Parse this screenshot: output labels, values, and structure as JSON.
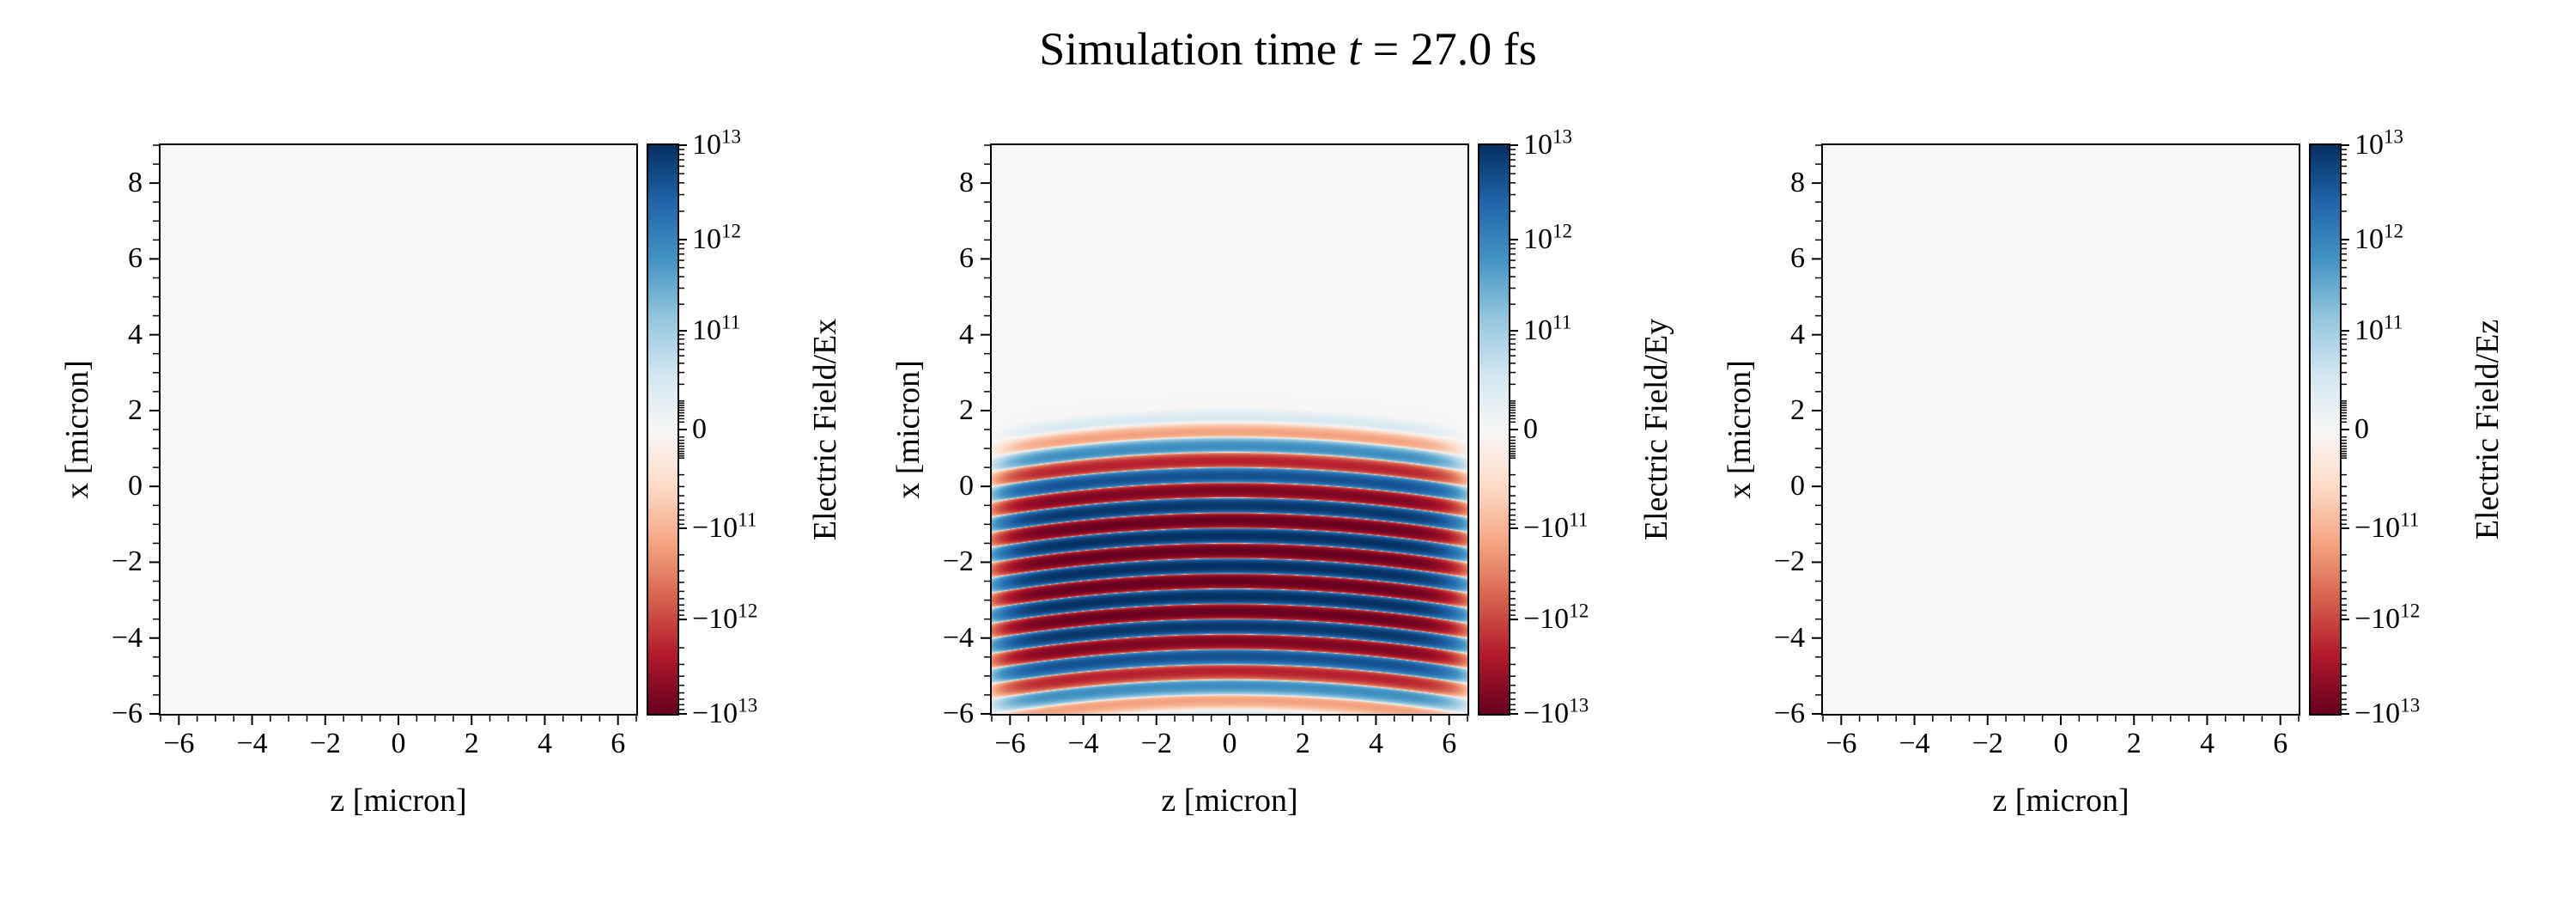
{
  "title": {
    "prefix": "Simulation time ",
    "variable": "t",
    "suffix": " = 27.0 fs"
  },
  "simulation_time_fs": 27.0,
  "colors": {
    "background": "#ffffff",
    "text": "#000000",
    "axis": "#000000",
    "colormap_name": "RdBu (red = negative, white = zero, blue = positive)",
    "colormap_stops": [
      "#67001f",
      "#b2182b",
      "#d6604d",
      "#f4a582",
      "#fddbc7",
      "#f7f7f7",
      "#d1e5f0",
      "#92c5de",
      "#4393c3",
      "#2166ac",
      "#053061"
    ]
  },
  "chart_data": [
    {
      "type": "heatmap",
      "field_component": "Ex",
      "xlabel": "z [micron]",
      "ylabel": "x [micron]",
      "xlim": [
        -6.5,
        6.5
      ],
      "ylim": [
        -6,
        9
      ],
      "xticks": [
        -6,
        -4,
        -2,
        0,
        2,
        4,
        6
      ],
      "yticks": [
        -6,
        -4,
        -2,
        0,
        2,
        4,
        6,
        8
      ],
      "grid": false,
      "colorbar_label": "Electric Field/Ex",
      "colorbar_scale": "symlog",
      "symlog_linthresh": 10000000000.0,
      "clim": [
        -10000000000000.0,
        10000000000000.0
      ],
      "colorbar_ticks": [
        "10^{13}",
        "10^{12}",
        "10^{11}",
        "0",
        "−10^{11}",
        "−10^{12}",
        "−10^{13}"
      ],
      "colorbar_tick_values": [
        10000000000000.0,
        1000000000000.0,
        100000000000.0,
        0,
        -100000000000.0,
        -1000000000000.0,
        -10000000000000.0
      ],
      "field": {
        "type": "uniform",
        "value": 0,
        "description": "Ex is zero everywhere (uniform near-white panel)"
      }
    },
    {
      "type": "heatmap",
      "field_component": "Ey",
      "xlabel": "z [micron]",
      "ylabel": "x [micron]",
      "xlim": [
        -6.5,
        6.5
      ],
      "ylim": [
        -6,
        9
      ],
      "xticks": [
        -6,
        -4,
        -2,
        0,
        2,
        4,
        6
      ],
      "yticks": [
        -6,
        -4,
        -2,
        0,
        2,
        4,
        6,
        8
      ],
      "grid": false,
      "colorbar_label": "Electric Field/Ey",
      "colorbar_scale": "symlog",
      "symlog_linthresh": 10000000000.0,
      "clim": [
        -10000000000000.0,
        10000000000000.0
      ],
      "colorbar_ticks": [
        "10^{13}",
        "10^{12}",
        "10^{11}",
        "0",
        "−10^{11}",
        "−10^{12}",
        "−10^{13}"
      ],
      "colorbar_tick_values": [
        10000000000000.0,
        1000000000000.0,
        100000000000.0,
        0,
        -100000000000.0,
        -1000000000000.0,
        -10000000000000.0
      ],
      "field": {
        "type": "stripe-pulse",
        "description": "Laser pulse: horizontal stripes of alternating sign (dark red / dark blue near the centre, fading outward), spanning z ≈ −6..6 and x ≈ −6..2, strongest near x ≈ −2, wavefronts slightly curved downward at the z edges",
        "x_center": -2.1,
        "x_halfwidth": 2.5,
        "wavelength_x_micron": 0.8,
        "z_flat_halfwidth": 5.9,
        "wavefront_curvature": 0.012,
        "peak_amplitude": 10000000000000.0
      }
    },
    {
      "type": "heatmap",
      "field_component": "Ez",
      "xlabel": "z [micron]",
      "ylabel": "x [micron]",
      "xlim": [
        -6.5,
        6.5
      ],
      "ylim": [
        -6,
        9
      ],
      "xticks": [
        -6,
        -4,
        -2,
        0,
        2,
        4,
        6
      ],
      "yticks": [
        -6,
        -4,
        -2,
        0,
        2,
        4,
        6,
        8
      ],
      "grid": false,
      "colorbar_label": "Electric Field/Ez",
      "colorbar_scale": "symlog",
      "symlog_linthresh": 10000000000.0,
      "clim": [
        -10000000000000.0,
        10000000000000.0
      ],
      "colorbar_ticks": [
        "10^{13}",
        "10^{12}",
        "10^{11}",
        "0",
        "−10^{11}",
        "−10^{12}",
        "−10^{13}"
      ],
      "colorbar_tick_values": [
        10000000000000.0,
        1000000000000.0,
        100000000000.0,
        0,
        -100000000000.0,
        -1000000000000.0,
        -10000000000000.0
      ],
      "field": {
        "type": "uniform",
        "value": 0,
        "description": "Ez is zero everywhere (uniform near-white panel)"
      }
    }
  ]
}
